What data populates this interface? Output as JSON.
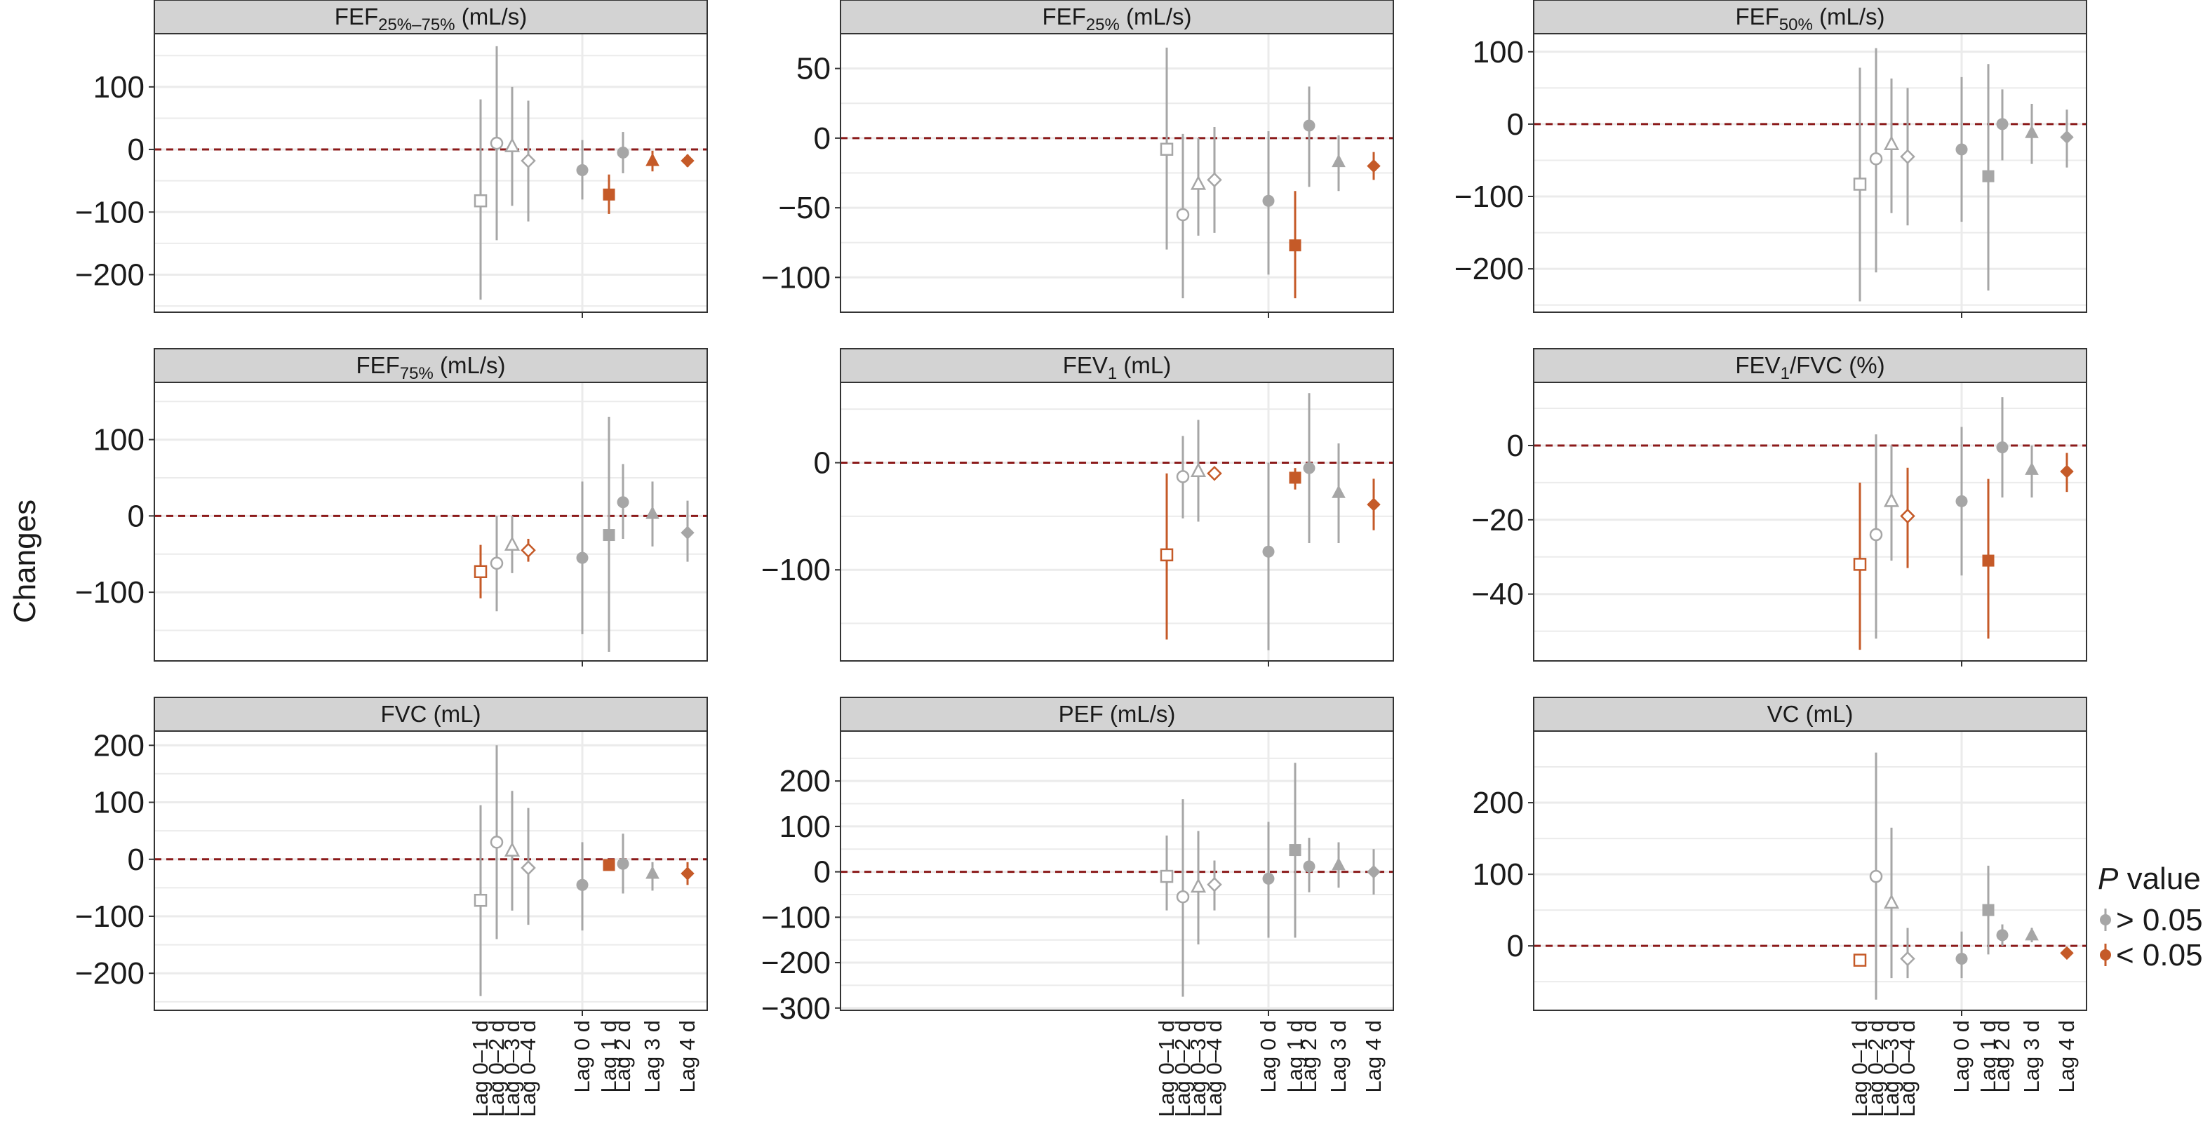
{
  "figure": {
    "ylabel": "Changes",
    "categories": [
      "Lag 0–1 d",
      "Lag 0–2 d",
      "Lag 0–3 d",
      "Lag 0–4 d",
      "Lag 0 d",
      "Lag 1 d",
      "Lag 2 d",
      "Lag 3 d",
      "Lag 4 d"
    ],
    "shapes": [
      "square-open",
      "circle-open",
      "triangle-open",
      "diamond-open",
      "circle",
      "square",
      "circle",
      "triangle",
      "diamond"
    ],
    "colors": {
      "not_significant": "#a6a6a6",
      "significant": "#c55a28",
      "zero_line": "#8b1a1a",
      "strip_fill": "#d3d3d3",
      "grid": "#ebebeb"
    },
    "legend": {
      "title_italic": "P",
      "title_rest": " value",
      "items": [
        {
          "label": "> 0.05",
          "key": "not_significant"
        },
        {
          "label": "< 0.05",
          "key": "significant"
        }
      ]
    }
  },
  "chart_data": [
    {
      "type": "scatter",
      "title": {
        "base": "FEF",
        "sub": "25%–75%",
        "suffix": " (mL/s)"
      },
      "ylim": [
        -260,
        185
      ],
      "yticks": [
        100,
        0,
        -100,
        -200
      ],
      "ytick_labels": [
        "100",
        "0",
        "−100",
        "−200"
      ],
      "estimate": [
        -82,
        10,
        5,
        -18,
        -33,
        -72,
        -5,
        -18,
        -18
      ],
      "lower": [
        -240,
        -145,
        -90,
        -115,
        -80,
        -103,
        -38,
        -35,
        -28
      ],
      "upper": [
        80,
        165,
        100,
        78,
        15,
        -40,
        28,
        -2,
        -8
      ],
      "significant": [
        false,
        false,
        false,
        false,
        false,
        true,
        false,
        true,
        true
      ]
    },
    {
      "type": "scatter",
      "title": {
        "base": "FEF",
        "sub": "25%",
        "suffix": " (mL/s)"
      },
      "ylim": [
        -125,
        75
      ],
      "yticks": [
        50,
        0,
        -50,
        -100
      ],
      "ytick_labels": [
        "50",
        "0",
        "−50",
        "−100"
      ],
      "estimate": [
        -8,
        -55,
        -33,
        -30,
        -45,
        -77,
        9,
        -17,
        -20
      ],
      "lower": [
        -80,
        -115,
        -70,
        -68,
        -98,
        -115,
        -35,
        -38,
        -30
      ],
      "upper": [
        65,
        3,
        0,
        8,
        5,
        -38,
        37,
        2,
        -10
      ],
      "significant": [
        false,
        false,
        false,
        false,
        false,
        true,
        false,
        false,
        true
      ]
    },
    {
      "type": "scatter",
      "title": {
        "base": "FEF",
        "sub": "50%",
        "suffix": " (mL/s)"
      },
      "ylim": [
        -260,
        125
      ],
      "yticks": [
        100,
        0,
        -100,
        -200
      ],
      "ytick_labels": [
        "100",
        "0",
        "−100",
        "−200"
      ],
      "estimate": [
        -83,
        -48,
        -28,
        -45,
        -35,
        -72,
        0,
        -12,
        -18
      ],
      "lower": [
        -245,
        -205,
        -123,
        -140,
        -135,
        -230,
        -50,
        -55,
        -60
      ],
      "upper": [
        78,
        105,
        63,
        50,
        65,
        83,
        48,
        28,
        20
      ],
      "significant": [
        false,
        false,
        false,
        false,
        false,
        false,
        false,
        false,
        false
      ]
    },
    {
      "type": "scatter",
      "title": {
        "base": "FEF",
        "sub": "75%",
        "suffix": " (mL/s)"
      },
      "ylim": [
        -190,
        175
      ],
      "yticks": [
        100,
        0,
        -100
      ],
      "ytick_labels": [
        "100",
        "0",
        "−100"
      ],
      "estimate": [
        -73,
        -62,
        -38,
        -45,
        -55,
        -25,
        18,
        3,
        -22
      ],
      "lower": [
        -108,
        -125,
        -75,
        -60,
        -155,
        -178,
        -30,
        -40,
        -60
      ],
      "upper": [
        -38,
        0,
        0,
        -30,
        45,
        130,
        68,
        45,
        20
      ],
      "significant": [
        true,
        false,
        false,
        true,
        false,
        false,
        false,
        false,
        false
      ]
    },
    {
      "type": "scatter",
      "title": {
        "base": "FEV",
        "sub": "1",
        "suffix": " (mL)"
      },
      "ylim": [
        -185,
        75
      ],
      "yticks": [
        0,
        -100
      ],
      "ytick_labels": [
        "0",
        "−100"
      ],
      "estimate": [
        -86,
        -13,
        -8,
        -10,
        -83,
        -14,
        -5,
        -28,
        -39
      ],
      "lower": [
        -165,
        -52,
        -55,
        -12,
        -175,
        -25,
        -75,
        -75,
        -63
      ],
      "upper": [
        -10,
        25,
        40,
        -8,
        0,
        -5,
        65,
        18,
        -15
      ],
      "significant": [
        true,
        false,
        false,
        true,
        false,
        true,
        false,
        false,
        true
      ]
    },
    {
      "type": "scatter",
      "title": {
        "base": "FEV",
        "sub": "1",
        "suffix": "/FVC (%)"
      },
      "ylim": [
        -58,
        17
      ],
      "yticks": [
        0,
        -20,
        -40
      ],
      "ytick_labels": [
        "0",
        "−20",
        "−40"
      ],
      "estimate": [
        -32,
        -24,
        -15,
        -19,
        -15,
        -31,
        -0.5,
        -6.5,
        -7
      ],
      "lower": [
        -55,
        -52,
        -31,
        -33,
        -35,
        -52,
        -14,
        -14,
        -12.5
      ],
      "upper": [
        -10,
        3,
        0,
        -6,
        5,
        -9,
        13,
        0,
        -2
      ],
      "significant": [
        true,
        false,
        false,
        true,
        false,
        true,
        false,
        false,
        true
      ]
    },
    {
      "type": "scatter",
      "title": {
        "base": "FVC (mL)",
        "sub": "",
        "suffix": ""
      },
      "ylim": [
        -265,
        225
      ],
      "yticks": [
        200,
        100,
        0,
        -100,
        -200
      ],
      "ytick_labels": [
        "200",
        "100",
        "0",
        "−100",
        "−200"
      ],
      "estimate": [
        -72,
        30,
        15,
        -15,
        -45,
        -10,
        -8,
        -25,
        -25
      ],
      "lower": [
        -240,
        -140,
        -90,
        -115,
        -125,
        -12,
        -60,
        -55,
        -45
      ],
      "upper": [
        95,
        200,
        120,
        90,
        30,
        -8,
        45,
        -5,
        -5
      ],
      "significant": [
        false,
        false,
        false,
        false,
        false,
        true,
        false,
        false,
        true
      ]
    },
    {
      "type": "scatter",
      "title": {
        "base": "PEF (mL/s)",
        "sub": "",
        "suffix": ""
      },
      "ylim": [
        -305,
        310
      ],
      "yticks": [
        200,
        100,
        0,
        -100,
        -200,
        -300
      ],
      "ytick_labels": [
        "200",
        "100",
        "0",
        "−100",
        "−200",
        "−300"
      ],
      "estimate": [
        -10,
        -55,
        -33,
        -28,
        -15,
        48,
        12,
        15,
        0
      ],
      "lower": [
        -85,
        -275,
        -160,
        -85,
        -145,
        -145,
        -45,
        -35,
        -50
      ],
      "upper": [
        80,
        160,
        90,
        25,
        110,
        240,
        75,
        65,
        50
      ],
      "significant": [
        false,
        false,
        false,
        false,
        false,
        false,
        false,
        false,
        false
      ]
    },
    {
      "type": "scatter",
      "title": {
        "base": "VC (mL)",
        "sub": "",
        "suffix": ""
      },
      "ylim": [
        -90,
        300
      ],
      "yticks": [
        200,
        100,
        0
      ],
      "ytick_labels": [
        "200",
        "100",
        "0"
      ],
      "estimate": [
        -20,
        97,
        60,
        -18,
        -18,
        50,
        15,
        15,
        -10
      ],
      "lower": [
        -25,
        -75,
        -45,
        -45,
        -45,
        -12,
        0,
        5,
        -12
      ],
      "upper": [
        -15,
        270,
        165,
        25,
        20,
        112,
        30,
        25,
        -8
      ],
      "significant": [
        true,
        false,
        false,
        false,
        false,
        false,
        false,
        false,
        true
      ]
    }
  ]
}
